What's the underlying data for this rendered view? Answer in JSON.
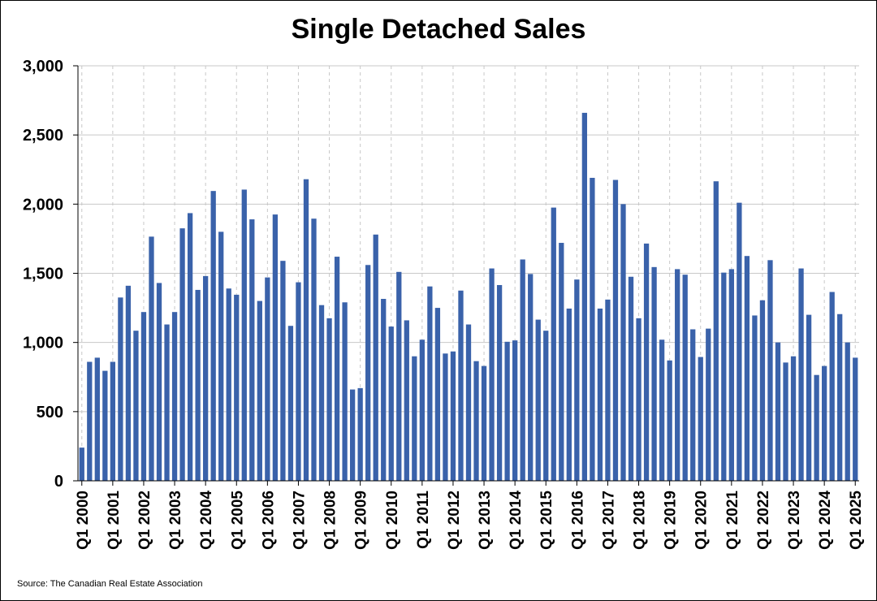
{
  "chart_data": {
    "type": "bar",
    "title": "Single Detached Sales",
    "source": "Source: The Canadian Real Estate Association",
    "bar_color": "#3a62aa",
    "ylim": [
      0,
      3000
    ],
    "yticks": [
      0,
      500,
      1000,
      1500,
      2000,
      2500,
      3000
    ],
    "ytick_labels": [
      "0",
      "500",
      "1,000",
      "1,500",
      "2,000",
      "2,500",
      "3,000"
    ],
    "xtick_labels": [
      "Q1 2000",
      "Q1 2001",
      "Q1 2002",
      "Q1 2003",
      "Q1 2004",
      "Q1 2005",
      "Q1 2006",
      "Q1 2007",
      "Q1 2008",
      "Q1 2009",
      "Q1 2010",
      "Q1 2011",
      "Q1 2012",
      "Q1 2013",
      "Q1 2014",
      "Q1 2015",
      "Q1 2016",
      "Q1 2017",
      "Q1 2018",
      "Q1 2019",
      "Q1 2020",
      "Q1 2021",
      "Q1 2022",
      "Q1 2023",
      "Q1 2024",
      "Q1 2025"
    ],
    "grid": true,
    "values": [
      240,
      860,
      890,
      795,
      860,
      1325,
      1410,
      1085,
      1220,
      1765,
      1430,
      1130,
      1220,
      1825,
      1935,
      1380,
      1480,
      2095,
      1800,
      1390,
      1345,
      2105,
      1890,
      1300,
      1470,
      1925,
      1590,
      1120,
      1435,
      2180,
      1895,
      1270,
      1175,
      1620,
      1290,
      660,
      670,
      1560,
      1780,
      1315,
      1115,
      1510,
      1160,
      900,
      1020,
      1405,
      1250,
      920,
      935,
      1375,
      1130,
      865,
      830,
      1535,
      1415,
      1005,
      1015,
      1600,
      1495,
      1165,
      1085,
      1975,
      1720,
      1245,
      1455,
      2660,
      2190,
      1245,
      1310,
      2175,
      2000,
      1475,
      1175,
      1715,
      1545,
      1020,
      870,
      1530,
      1490,
      1095,
      895,
      1100,
      2165,
      1505,
      1530,
      2010,
      1625,
      1195,
      1305,
      1595,
      1000,
      855,
      900,
      1535,
      1200,
      765,
      830,
      1365,
      1205,
      1000,
      890
    ]
  }
}
